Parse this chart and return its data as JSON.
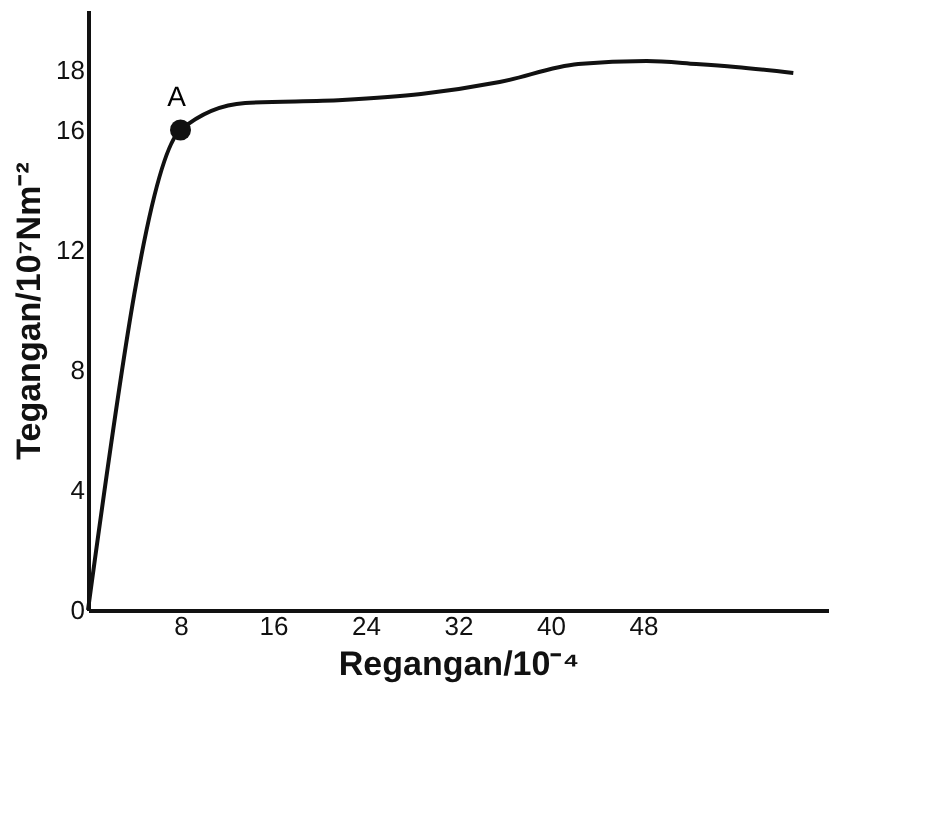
{
  "chart_data": {
    "type": "line",
    "xlabel": "Regangan/10⁻⁴",
    "ylabel": "Tegangan/10⁷Nm⁻²",
    "xlim": [
      0,
      64
    ],
    "ylim": [
      0,
      20
    ],
    "xticks": [
      8,
      16,
      24,
      32,
      40,
      48
    ],
    "yticks": [
      0,
      4,
      8,
      12,
      16,
      18
    ],
    "grid": false,
    "line_style": "solid",
    "series": [
      {
        "color": "#111111",
        "x": [
          0,
          8,
          13.6,
          22,
          28.8,
          35.6,
          42.4,
          48.3,
          52.6,
          56,
          61
        ],
        "values": [
          0,
          16,
          16.9,
          17.0,
          17.2,
          17.6,
          18.2,
          18.3,
          18.2,
          18.1,
          17.9
        ]
      },
      {
        "type": "scatter",
        "color": "#111111",
        "x": [
          8
        ],
        "values": [
          16
        ]
      }
    ],
    "annotations": [
      {
        "text": "A",
        "x": 8,
        "y": 16
      }
    ]
  }
}
